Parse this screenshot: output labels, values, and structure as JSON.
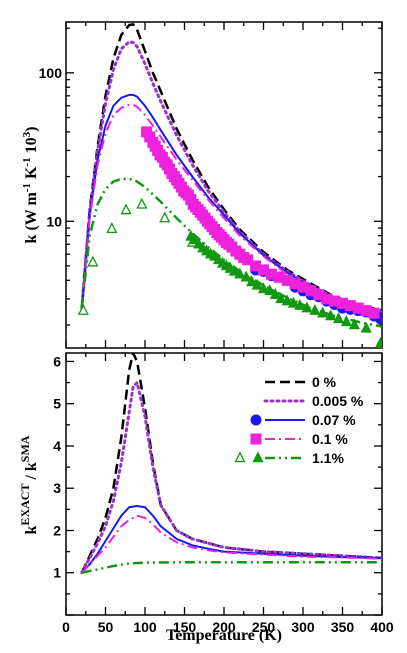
{
  "chart_data": [
    {
      "type": "line",
      "panel": "top",
      "ylabel": "k (W m^-1 K^-1 10^3)",
      "y_scale": "log",
      "xlim": [
        0,
        400
      ],
      "ylim": [
        1.4,
        220
      ],
      "y_ticks": [
        10,
        100
      ],
      "series": [
        {
          "name": "0 %",
          "color": "#000000",
          "style": "dashed",
          "x": [
            20,
            30,
            40,
            50,
            60,
            70,
            80,
            85,
            90,
            100,
            110,
            120,
            140,
            160,
            180,
            200,
            220,
            250,
            280,
            310,
            340,
            370,
            400
          ],
          "y": [
            2.6,
            12,
            32,
            70,
            125,
            180,
            210,
            212,
            195,
            140,
            100,
            75,
            42,
            26,
            17,
            12,
            8.8,
            6.2,
            4.7,
            3.8,
            3.1,
            2.75,
            2.5
          ]
        },
        {
          "name": "0.005 %",
          "color": "#9933cc",
          "style": "dotted",
          "x": [
            20,
            30,
            40,
            50,
            60,
            70,
            80,
            85,
            90,
            100,
            110,
            120,
            140,
            160,
            180,
            200,
            220,
            250,
            280,
            310,
            340,
            370,
            400
          ],
          "y": [
            2.6,
            11.5,
            30,
            62,
            105,
            145,
            162,
            160,
            150,
            115,
            85,
            64,
            38,
            24,
            16,
            11.5,
            8.5,
            6.0,
            4.6,
            3.7,
            3.05,
            2.7,
            2.45
          ]
        },
        {
          "name": "0.07 %",
          "color": "#1a1aee",
          "style": "solid",
          "x": [
            20,
            30,
            40,
            50,
            60,
            70,
            80,
            85,
            90,
            100,
            110,
            120,
            140,
            160,
            180,
            200,
            220,
            250,
            280,
            310,
            340,
            370,
            400
          ],
          "y": [
            2.6,
            11,
            26,
            44,
            60,
            68,
            71,
            71,
            69,
            60,
            50,
            41,
            28,
            20,
            14.5,
            11,
            8.3,
            5.9,
            4.5,
            3.6,
            3.0,
            2.65,
            2.4
          ]
        },
        {
          "name": "0.1 %",
          "color": "#ee22dd",
          "style": "dashdot",
          "x": [
            20,
            30,
            40,
            50,
            60,
            70,
            80,
            85,
            90,
            100,
            110,
            120,
            140,
            160,
            180,
            200,
            220,
            250,
            280,
            310,
            340,
            370,
            400
          ],
          "y": [
            2.6,
            10.5,
            24,
            39,
            52,
            58,
            61,
            61,
            59,
            52,
            44,
            37,
            26,
            19,
            14,
            10.5,
            8.0,
            5.8,
            4.4,
            3.55,
            2.95,
            2.6,
            2.35
          ]
        },
        {
          "name": "1.1%",
          "color": "#119911",
          "style": "dashdotdot",
          "x": [
            20,
            30,
            40,
            50,
            60,
            70,
            80,
            85,
            90,
            100,
            110,
            120,
            140,
            160,
            180,
            200,
            220,
            250,
            280,
            310,
            340,
            370,
            400
          ],
          "y": [
            2.6,
            8,
            13,
            16.5,
            18.5,
            19.3,
            19.3,
            19,
            18.5,
            17,
            15.2,
            13.5,
            10.5,
            8.3,
            6.7,
            5.5,
            4.6,
            3.7,
            3.05,
            2.6,
            2.3,
            2.1,
            1.95
          ]
        }
      ],
      "points": [
        {
          "name": "0.07 %",
          "marker": "circle",
          "color": "#1a1aee",
          "x": [
            240,
            250,
            260,
            270,
            280,
            290,
            300,
            310,
            320,
            330,
            340,
            350,
            360,
            370,
            380,
            390,
            398
          ],
          "y": [
            4.7,
            4.6,
            4.3,
            4.2,
            4.0,
            3.6,
            3.4,
            3.2,
            3.1,
            2.9,
            2.75,
            2.6,
            2.55,
            2.5,
            2.45,
            2.3,
            2.2
          ]
        },
        {
          "name": "0.1 %",
          "marker": "square",
          "color": "#ee22dd",
          "x": [
            102,
            106,
            110,
            113,
            116,
            119,
            122,
            125,
            128,
            131,
            134,
            137,
            140,
            143,
            146,
            149,
            152,
            155,
            158,
            161,
            164,
            167,
            170,
            173,
            176,
            179,
            182,
            185,
            188,
            191,
            194,
            197,
            200,
            203,
            206,
            210,
            215,
            220,
            225,
            230,
            240,
            250,
            260,
            270,
            280,
            290,
            300,
            310,
            320,
            330,
            340,
            350,
            360,
            370,
            380,
            390
          ],
          "y": [
            40,
            37,
            34,
            32,
            30,
            28,
            27,
            25,
            24,
            22.5,
            21,
            20,
            19,
            18,
            17,
            16,
            15.5,
            15,
            14,
            13,
            12.5,
            12,
            11.5,
            11,
            10.5,
            10,
            9.6,
            9.2,
            8.8,
            8.4,
            8.1,
            7.8,
            7.5,
            7.2,
            7.0,
            6.7,
            6.3,
            6.0,
            5.7,
            5.5,
            5.0,
            4.7,
            4.4,
            4.2,
            4.0,
            3.8,
            3.6,
            3.4,
            3.2,
            3.0,
            2.9,
            2.8,
            2.7,
            2.6,
            2.5,
            2.4
          ]
        },
        {
          "name": "1.1% (open)",
          "marker": "triangle-open",
          "color": "#119911",
          "x": [
            22,
            34,
            58,
            76,
            96,
            125,
            160
          ],
          "y": [
            2.5,
            5.3,
            8.9,
            11.9,
            13.0,
            10.5,
            7.2
          ]
        },
        {
          "name": "1.1% (filled)",
          "marker": "triangle",
          "color": "#119911",
          "x": [
            158,
            163,
            168,
            173,
            178,
            183,
            188,
            193,
            198,
            203,
            208,
            213,
            220,
            228,
            235,
            242,
            250,
            258,
            265,
            272,
            280,
            288,
            296,
            305,
            315,
            325,
            335,
            345,
            355,
            365,
            380,
            398
          ],
          "y": [
            7.9,
            7.5,
            7.0,
            6.6,
            6.3,
            6.0,
            5.8,
            5.5,
            5.2,
            5.0,
            4.8,
            4.6,
            4.4,
            4.2,
            3.9,
            3.7,
            3.5,
            3.4,
            3.2,
            3.0,
            2.9,
            2.8,
            2.7,
            2.6,
            2.5,
            2.4,
            2.3,
            2.2,
            2.1,
            2.0,
            1.9,
            1.5
          ]
        }
      ]
    },
    {
      "type": "line",
      "panel": "bottom",
      "xlabel": "Temperature (K)",
      "ylabel": "k^EXACT / k^SMA",
      "xlim": [
        0,
        400
      ],
      "ylim": [
        0,
        6.2
      ],
      "x_ticks": [
        0,
        50,
        100,
        150,
        200,
        250,
        300,
        350,
        400
      ],
      "y_ticks": [
        1,
        2,
        3,
        4,
        5,
        6
      ],
      "series": [
        {
          "name": "0 %",
          "color": "#000000",
          "style": "dashed",
          "x": [
            20,
            30,
            40,
            50,
            60,
            70,
            80,
            85,
            90,
            100,
            110,
            120,
            140,
            160,
            180,
            200,
            250,
            300,
            350,
            400
          ],
          "y": [
            1.0,
            1.4,
            1.8,
            2.3,
            3.0,
            4.2,
            5.8,
            6.2,
            6.0,
            4.9,
            3.6,
            2.6,
            2.0,
            1.8,
            1.7,
            1.6,
            1.5,
            1.45,
            1.4,
            1.35
          ]
        },
        {
          "name": "0.005 %",
          "color": "#9933cc",
          "style": "dotted",
          "x": [
            20,
            30,
            40,
            50,
            60,
            70,
            80,
            85,
            90,
            100,
            110,
            120,
            140,
            160,
            180,
            200,
            250,
            300,
            350,
            400
          ],
          "y": [
            1.0,
            1.35,
            1.7,
            2.1,
            2.7,
            3.6,
            4.8,
            5.4,
            5.5,
            4.7,
            3.5,
            2.6,
            2.0,
            1.8,
            1.7,
            1.6,
            1.5,
            1.45,
            1.4,
            1.35
          ]
        },
        {
          "name": "0.07 %",
          "color": "#1a1aee",
          "style": "solid",
          "x": [
            20,
            30,
            40,
            50,
            60,
            70,
            80,
            90,
            100,
            110,
            120,
            140,
            160,
            180,
            200,
            250,
            300,
            350,
            400
          ],
          "y": [
            1.0,
            1.2,
            1.45,
            1.75,
            2.05,
            2.35,
            2.55,
            2.58,
            2.55,
            2.35,
            2.1,
            1.8,
            1.65,
            1.57,
            1.5,
            1.45,
            1.4,
            1.37,
            1.35
          ]
        },
        {
          "name": "0.1 %",
          "color": "#ee22dd",
          "style": "dashdot",
          "x": [
            20,
            30,
            40,
            50,
            60,
            70,
            80,
            90,
            100,
            110,
            120,
            140,
            160,
            180,
            200,
            250,
            300,
            350,
            400
          ],
          "y": [
            1.0,
            1.2,
            1.4,
            1.6,
            1.85,
            2.1,
            2.25,
            2.35,
            2.3,
            2.15,
            1.95,
            1.72,
            1.6,
            1.53,
            1.48,
            1.43,
            1.38,
            1.36,
            1.33
          ]
        },
        {
          "name": "1.1%",
          "color": "#119911",
          "style": "dashdotdot",
          "x": [
            20,
            40,
            60,
            80,
            100,
            150,
            200,
            300,
            400
          ],
          "y": [
            1.0,
            1.08,
            1.16,
            1.22,
            1.24,
            1.25,
            1.25,
            1.25,
            1.25
          ]
        }
      ]
    }
  ],
  "legend": {
    "placement": "top-right of bottom panel",
    "entries": [
      {
        "label": "0  %",
        "line": "dashed",
        "line_color": "#000000",
        "markers": []
      },
      {
        "label": "0.005 %",
        "line": "dotted",
        "line_color": "#9933cc",
        "markers": []
      },
      {
        "label": "0.07  %",
        "line": "solid",
        "line_color": "#1a1aee",
        "markers": [
          {
            "shape": "circle",
            "color": "#1a1aee",
            "filled": true
          }
        ]
      },
      {
        "label": "0.1  %",
        "line": "dashdot",
        "line_color": "#ee22dd",
        "markers": [
          {
            "shape": "square",
            "color": "#ee22dd",
            "filled": true
          }
        ]
      },
      {
        "label": "1.1%",
        "line": "dashdotdot",
        "line_color": "#119911",
        "markers": [
          {
            "shape": "triangle",
            "color": "#119911",
            "filled": false
          },
          {
            "shape": "triangle",
            "color": "#119911",
            "filled": true
          }
        ]
      }
    ]
  },
  "labels": {
    "top_ylabel": "k (W m",
    "top_ylabel_exp1": "-1",
    "top_ylabel_mid": " K",
    "top_ylabel_exp2": "-1",
    "top_ylabel_end": " 10",
    "top_ylabel_exp3": "3",
    "top_ylabel_close": ")",
    "bottom_ylabel_k1": "k",
    "bottom_ylabel_sup1": "EXACT",
    "bottom_ylabel_sep": " / k",
    "bottom_ylabel_sup2": "SMA",
    "xlabel": "Temperature (K)"
  }
}
